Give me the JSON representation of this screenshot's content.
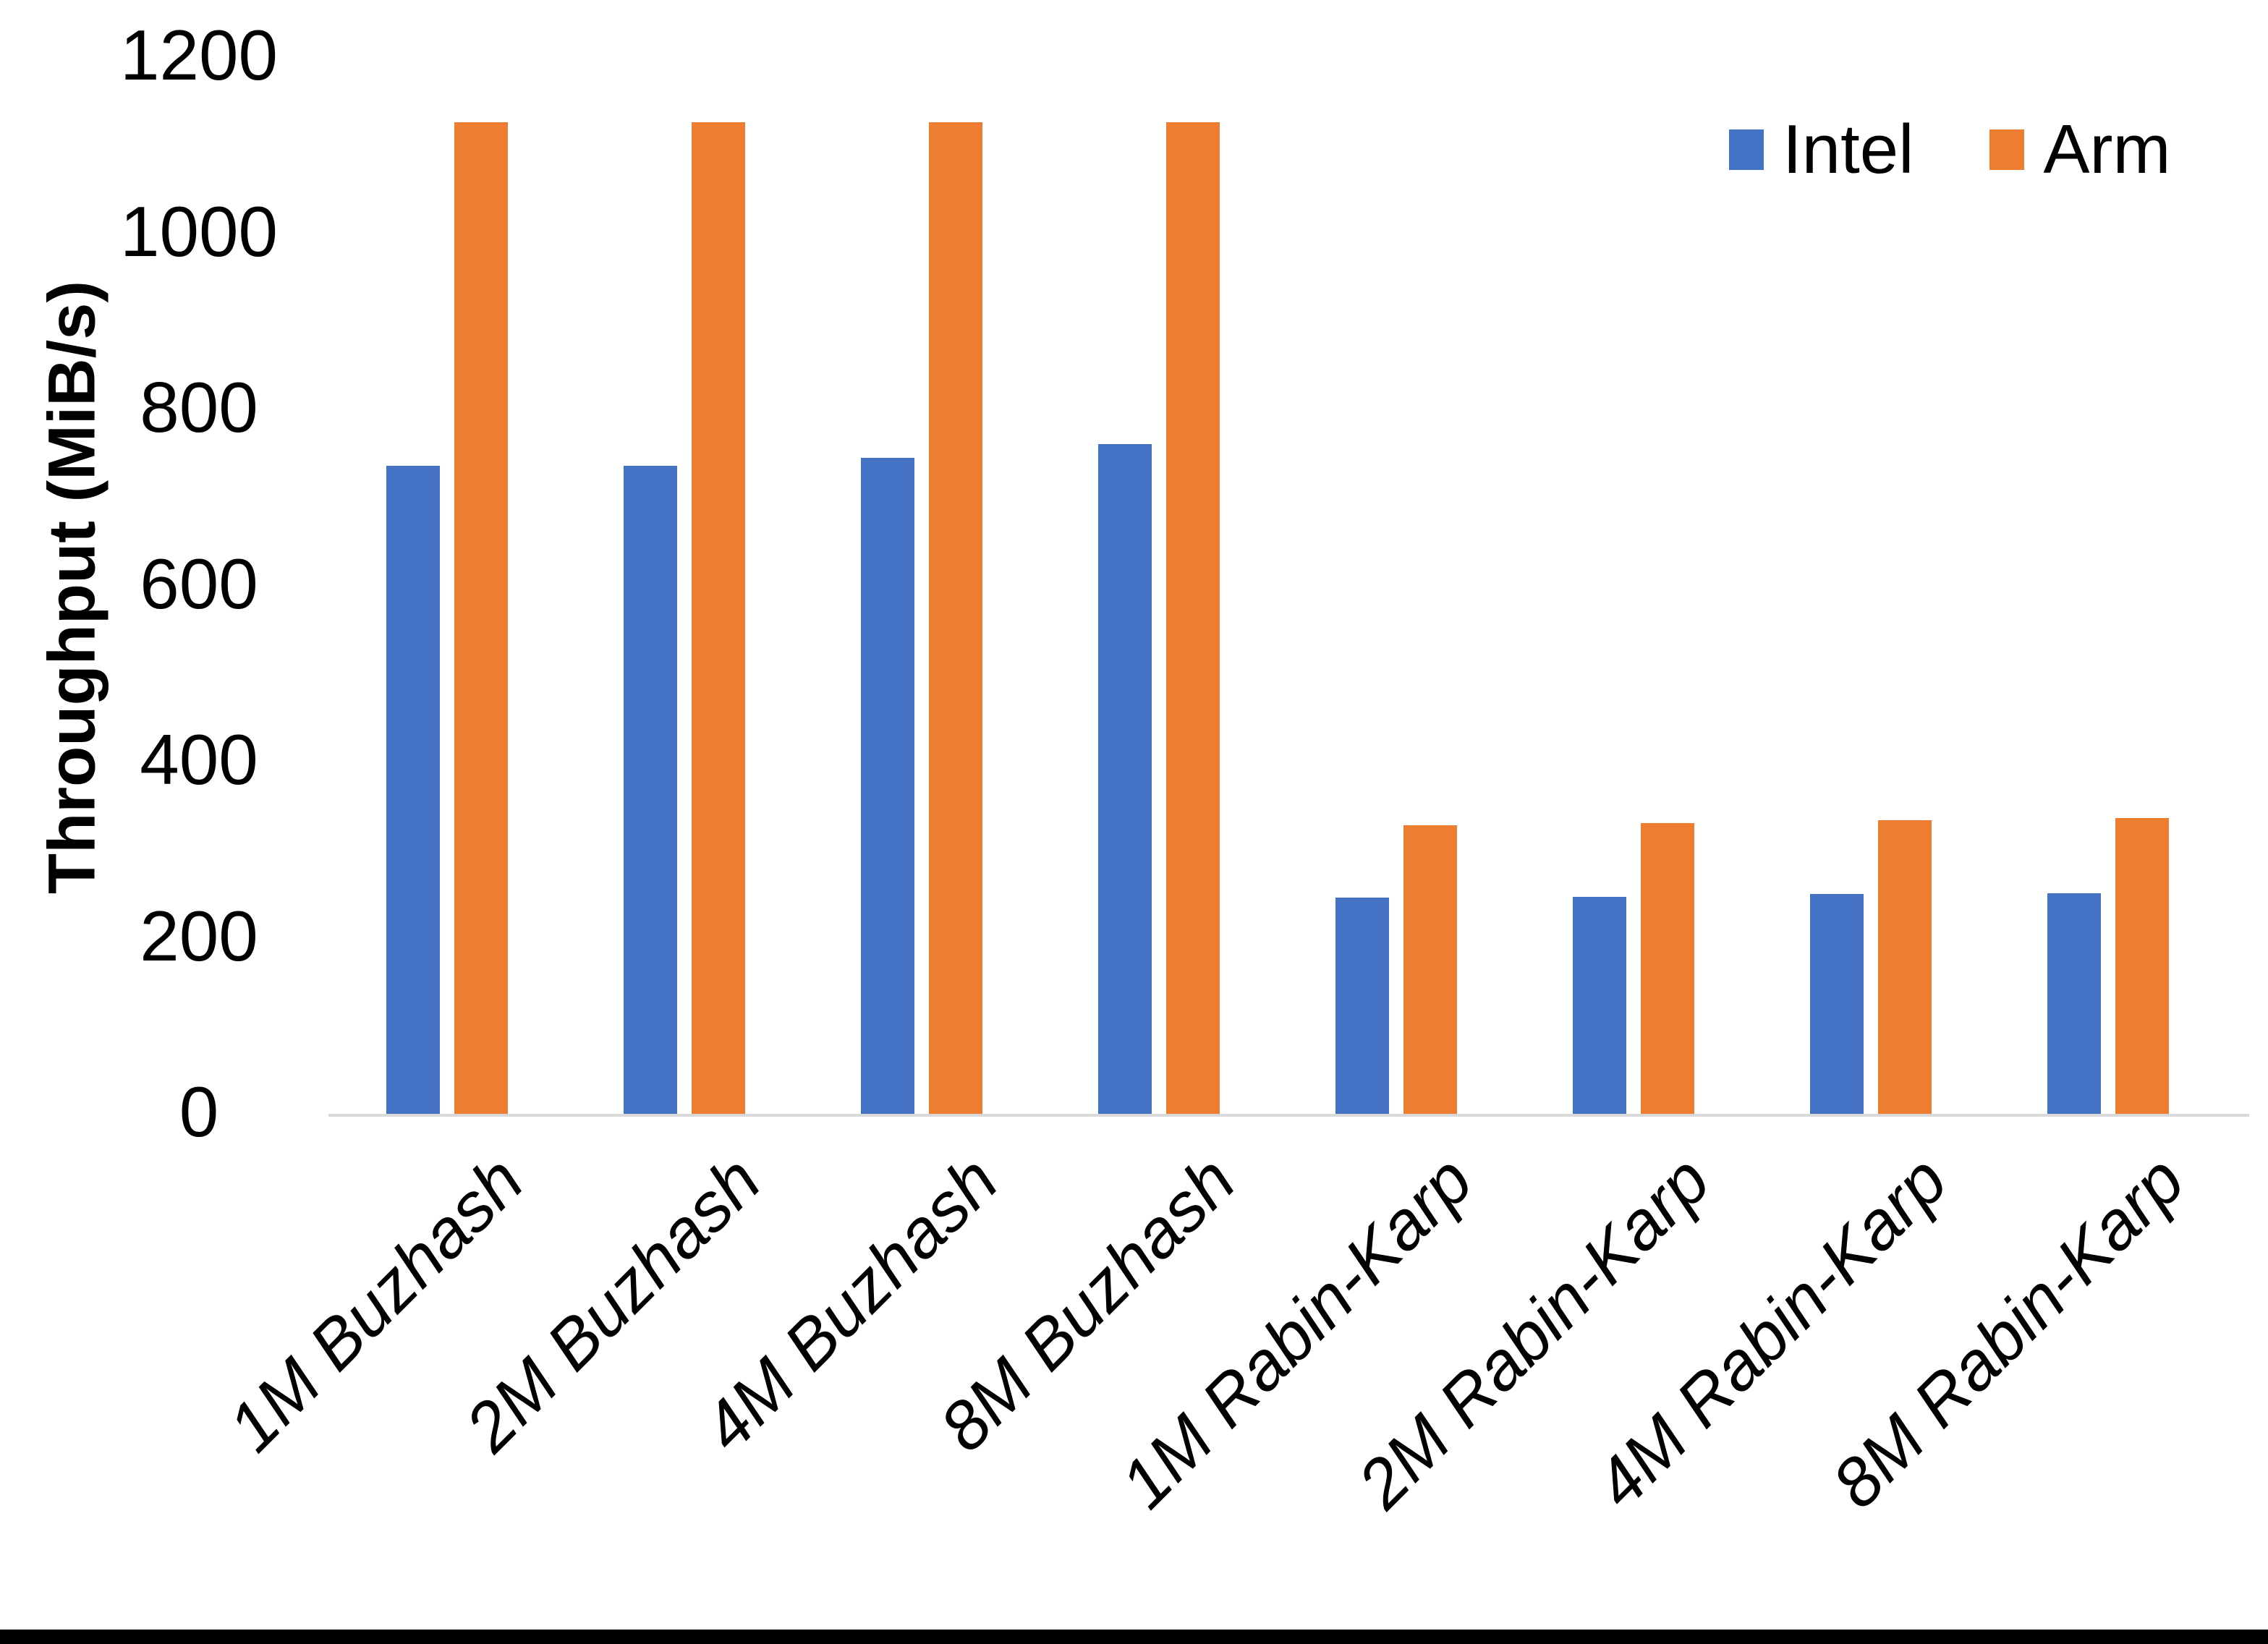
{
  "chart_data": {
    "type": "bar",
    "title": "",
    "xlabel": "",
    "ylabel": "Throughput (MiB/s)",
    "ylim": [
      0,
      1200
    ],
    "yticks": [
      0,
      200,
      400,
      600,
      800,
      1000,
      1200
    ],
    "grid": false,
    "legend_position": "top-right",
    "categories": [
      "1M Buzhash",
      "2M Buzhash",
      "4M Buzhash",
      "8M Buzhash",
      "1M Rabin-Karp",
      "2M Rabin-Karp",
      "4M Rabin-Karp",
      "8M Rabin-Karp"
    ],
    "series": [
      {
        "name": "Intel",
        "color": "#4472C4",
        "values": [
          738,
          738,
          747,
          762,
          247,
          248,
          251,
          252
        ]
      },
      {
        "name": "Arm",
        "color": "#ED7D31",
        "values": [
          1128,
          1128,
          1128,
          1128,
          329,
          332,
          335,
          338
        ]
      }
    ]
  },
  "colors": {
    "axis_line": "#d9d9d9",
    "text": "#000000",
    "bottom_border": "#000000"
  }
}
